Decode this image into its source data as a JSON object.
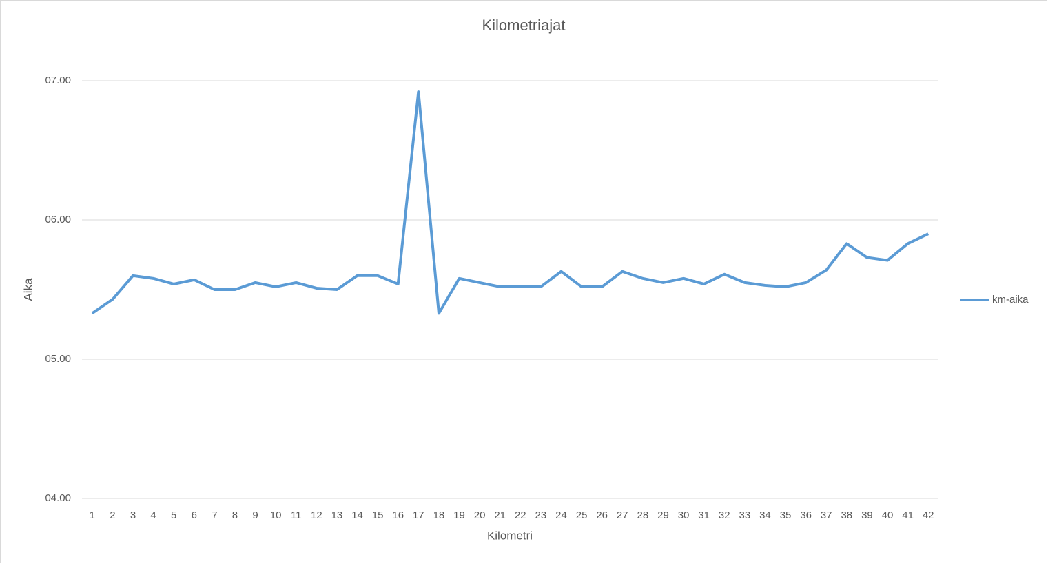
{
  "chart_data": {
    "type": "line",
    "title": "Kilometriajat",
    "x_label": "Kilometri",
    "y_label": "Aika",
    "categories": [
      "1",
      "2",
      "3",
      "4",
      "5",
      "6",
      "7",
      "8",
      "9",
      "10",
      "11",
      "12",
      "13",
      "14",
      "15",
      "16",
      "17",
      "18",
      "19",
      "20",
      "21",
      "22",
      "23",
      "24",
      "25",
      "26",
      "27",
      "28",
      "29",
      "30",
      "31",
      "32",
      "33",
      "34",
      "35",
      "36",
      "37",
      "38",
      "39",
      "40",
      "41",
      "42"
    ],
    "series": [
      {
        "name": "km-aika",
        "color": "#5b9bd5",
        "values": [
          5.33,
          5.43,
          5.6,
          5.58,
          5.54,
          5.57,
          5.5,
          5.5,
          5.55,
          5.52,
          5.55,
          5.51,
          5.5,
          5.6,
          5.6,
          5.54,
          6.92,
          5.33,
          5.58,
          5.55,
          5.52,
          5.52,
          5.52,
          5.63,
          5.52,
          5.52,
          5.63,
          5.58,
          5.55,
          5.58,
          5.54,
          5.61,
          5.55,
          5.53,
          5.52,
          5.55,
          5.64,
          5.83,
          5.73,
          5.71,
          5.83,
          5.9
        ]
      }
    ],
    "ylim": [
      4,
      7
    ],
    "yticks": [
      {
        "value": 4,
        "label": "04.00"
      },
      {
        "value": 5,
        "label": "05.00"
      },
      {
        "value": 6,
        "label": "06.00"
      },
      {
        "value": 7,
        "label": "07.00"
      }
    ],
    "grid": true,
    "legend": "right"
  }
}
